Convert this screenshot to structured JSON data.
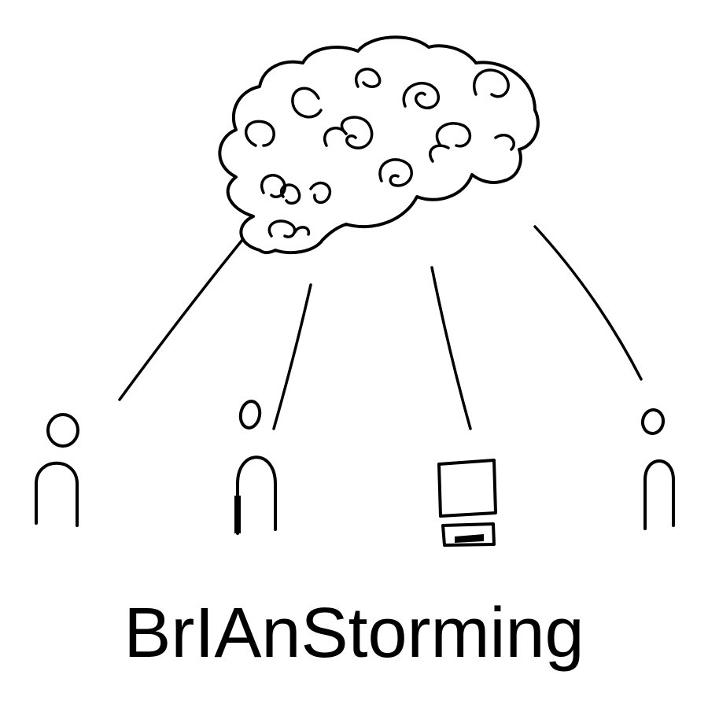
{
  "title": "BrIAnStorming",
  "colors": {
    "ink": "#000000",
    "background": "#ffffff"
  },
  "nodes": [
    {
      "kind": "person",
      "icon": "person-icon"
    },
    {
      "kind": "person",
      "icon": "person-icon"
    },
    {
      "kind": "computer",
      "icon": "computer-icon"
    },
    {
      "kind": "person",
      "icon": "person-icon"
    }
  ],
  "hub": {
    "icon": "brain-cloud-icon"
  }
}
